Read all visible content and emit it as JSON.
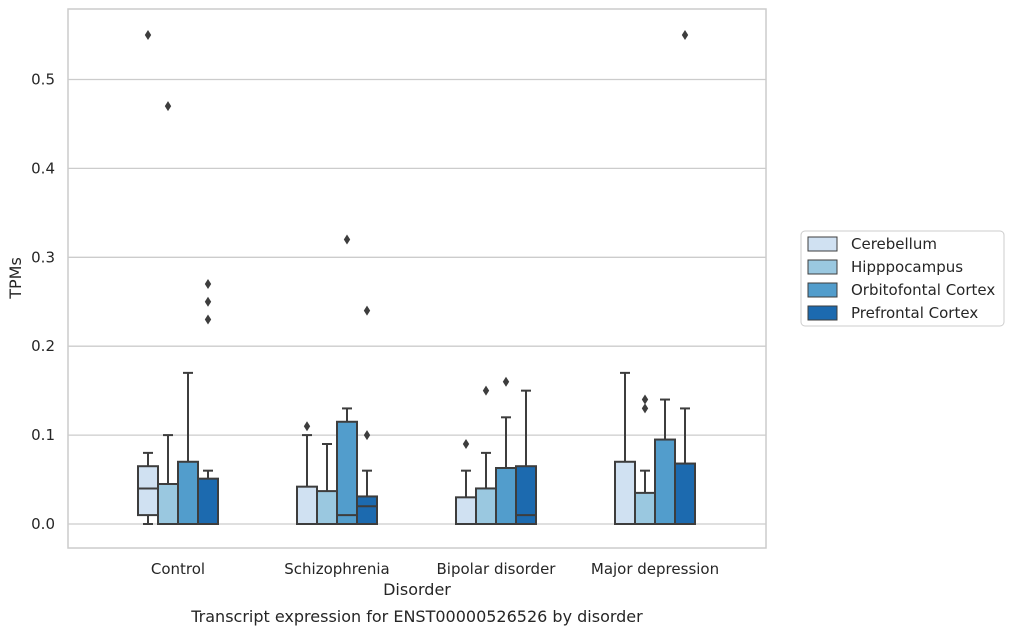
{
  "chart_data": {
    "type": "box",
    "title": "",
    "caption": "Transcript expression for ENST00000526526 by disorder",
    "xlabel": "Disorder",
    "ylabel": "TPMs",
    "ylim": [
      -0.027,
      0.583
    ],
    "yticks": [
      0.0,
      0.1,
      0.2,
      0.3,
      0.4,
      0.5
    ],
    "ytick_labels": [
      "0.0",
      "0.1",
      "0.2",
      "0.3",
      "0.4",
      "0.5"
    ],
    "grid": "horizontal",
    "legend_position": "right",
    "categories": [
      "Control",
      "Schizophrenia",
      "Bipolar disorder",
      "Major depression"
    ],
    "series": [
      {
        "name": "Cerebellum",
        "color": "#d0e1f2",
        "boxes": [
          {
            "q1": 0.01,
            "median": 0.04,
            "q3": 0.065,
            "whisker_low": 0.0,
            "whisker_high": 0.08,
            "outliers": [
              0.55
            ]
          },
          {
            "q1": 0.0,
            "median": 0.0,
            "q3": 0.042,
            "whisker_low": 0.0,
            "whisker_high": 0.1,
            "outliers": [
              0.11
            ]
          },
          {
            "q1": 0.0,
            "median": 0.0,
            "q3": 0.03,
            "whisker_low": 0.0,
            "whisker_high": 0.06,
            "outliers": [
              0.09
            ]
          },
          {
            "q1": 0.0,
            "median": 0.0,
            "q3": 0.07,
            "whisker_low": 0.0,
            "whisker_high": 0.17,
            "outliers": []
          }
        ]
      },
      {
        "name": "Hipppocampus",
        "color": "#9ac8e0",
        "boxes": [
          {
            "q1": 0.0,
            "median": 0.0,
            "q3": 0.045,
            "whisker_low": 0.0,
            "whisker_high": 0.1,
            "outliers": [
              0.47
            ]
          },
          {
            "q1": 0.0,
            "median": 0.0,
            "q3": 0.037,
            "whisker_low": 0.0,
            "whisker_high": 0.09,
            "outliers": []
          },
          {
            "q1": 0.0,
            "median": 0.0,
            "q3": 0.04,
            "whisker_low": 0.0,
            "whisker_high": 0.08,
            "outliers": [
              0.15
            ]
          },
          {
            "q1": 0.0,
            "median": 0.0,
            "q3": 0.035,
            "whisker_low": 0.0,
            "whisker_high": 0.06,
            "outliers": [
              0.14,
              0.13
            ]
          }
        ]
      },
      {
        "name": "Orbitofontal Cortex",
        "color": "#529dcc",
        "boxes": [
          {
            "q1": 0.0,
            "median": 0.0,
            "q3": 0.07,
            "whisker_low": 0.0,
            "whisker_high": 0.17,
            "outliers": []
          },
          {
            "q1": 0.0,
            "median": 0.01,
            "q3": 0.115,
            "whisker_low": 0.0,
            "whisker_high": 0.13,
            "outliers": [
              0.32
            ]
          },
          {
            "q1": 0.0,
            "median": 0.0,
            "q3": 0.063,
            "whisker_low": 0.0,
            "whisker_high": 0.12,
            "outliers": [
              0.16
            ]
          },
          {
            "q1": 0.0,
            "median": 0.0,
            "q3": 0.095,
            "whisker_low": 0.0,
            "whisker_high": 0.14,
            "outliers": []
          }
        ]
      },
      {
        "name": "Prefrontal Cortex",
        "color": "#1c6aaf",
        "boxes": [
          {
            "q1": 0.0,
            "median": 0.0,
            "q3": 0.051,
            "whisker_low": 0.0,
            "whisker_high": 0.06,
            "outliers": [
              0.27,
              0.25,
              0.23
            ]
          },
          {
            "q1": 0.0,
            "median": 0.02,
            "q3": 0.031,
            "whisker_low": 0.0,
            "whisker_high": 0.06,
            "outliers": [
              0.24,
              0.1
            ]
          },
          {
            "q1": 0.0,
            "median": 0.01,
            "q3": 0.065,
            "whisker_low": 0.0,
            "whisker_high": 0.15,
            "outliers": []
          },
          {
            "q1": 0.0,
            "median": 0.0,
            "q3": 0.068,
            "whisker_low": 0.0,
            "whisker_high": 0.13,
            "outliers": [
              0.55
            ]
          }
        ]
      }
    ]
  }
}
